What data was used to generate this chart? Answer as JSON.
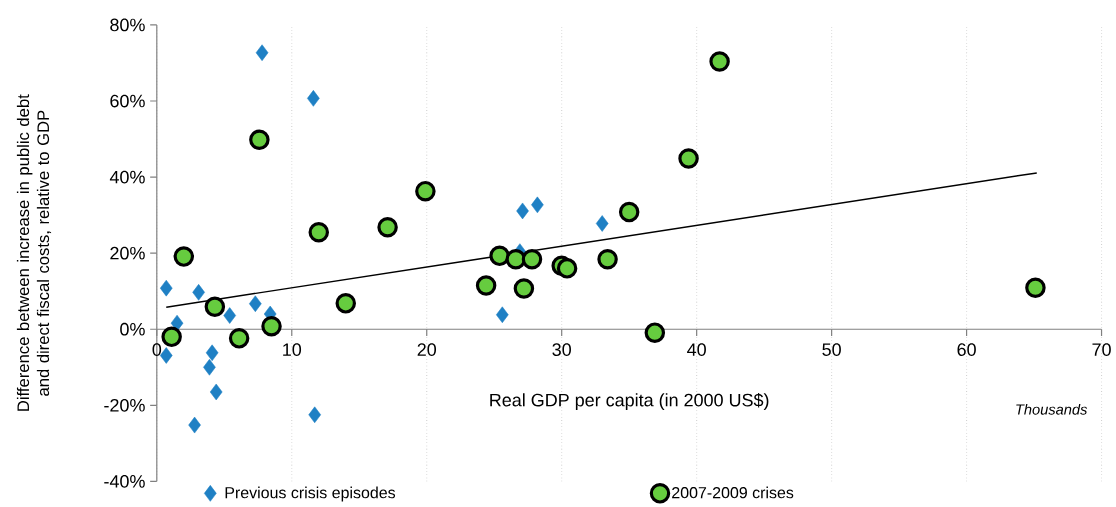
{
  "chart_data": {
    "type": "scatter",
    "xlabel": "Real GDP per capita (in 2000 US$)",
    "ylabel": "Difference between increase in public debt and direct fiscal costs, relative to GDP",
    "annotations": [
      "Thousands"
    ],
    "xlim": [
      0,
      70
    ],
    "xticks": [
      0,
      10,
      20,
      30,
      40,
      50,
      60,
      70
    ],
    "ylim": [
      -40,
      80
    ],
    "yticks": [
      {
        "value": -40,
        "label": "-40%"
      },
      {
        "value": -20,
        "label": "-20%"
      },
      {
        "value": 0,
        "label": "0%"
      },
      {
        "value": 20,
        "label": "20%"
      },
      {
        "value": 40,
        "label": "40%"
      },
      {
        "value": 60,
        "label": "60%"
      },
      {
        "value": 80,
        "label": "80%"
      }
    ],
    "grid": "x",
    "legend": "bottom",
    "series": [
      {
        "name": "Previous crisis episodes",
        "marker": "diamond",
        "color": "#1f80c4",
        "x": [
          0.7,
          0.7,
          1.5,
          3.1,
          5.4,
          7.3,
          8.4,
          4.1,
          3.9,
          4.4,
          2.8,
          11.7,
          7.8,
          11.6,
          27.1,
          28.2,
          33.0,
          25.6,
          26.9
        ],
        "values": [
          10.8,
          -6.9,
          1.6,
          9.7,
          3.6,
          6.7,
          4.0,
          -6.2,
          -10.0,
          -16.5,
          -25.2,
          -22.5,
          72.7,
          60.7,
          31.1,
          32.7,
          27.8,
          3.8,
          20.4
        ]
      },
      {
        "name": "2007-2009 crises",
        "marker": "circle",
        "color": "#66cc3f",
        "x": [
          1.1,
          2.0,
          4.3,
          6.1,
          8.5,
          7.6,
          12.0,
          14.0,
          17.1,
          19.9,
          24.4,
          25.4,
          26.6,
          27.8,
          27.2,
          30.0,
          30.4,
          33.4,
          35.0,
          36.9,
          39.4,
          41.7,
          65.1
        ],
        "values": [
          -2.0,
          19.1,
          5.9,
          -2.4,
          0.8,
          49.8,
          25.5,
          6.8,
          26.8,
          36.3,
          11.5,
          19.3,
          18.4,
          18.4,
          10.7,
          16.7,
          16.0,
          18.4,
          30.8,
          -0.9,
          44.9,
          70.4,
          10.9
        ]
      },
      {
        "type": "line",
        "marker": "none",
        "color": "#000000",
        "x": [
          0.7,
          65.2
        ],
        "values": [
          5.8,
          41.1
        ]
      }
    ]
  }
}
